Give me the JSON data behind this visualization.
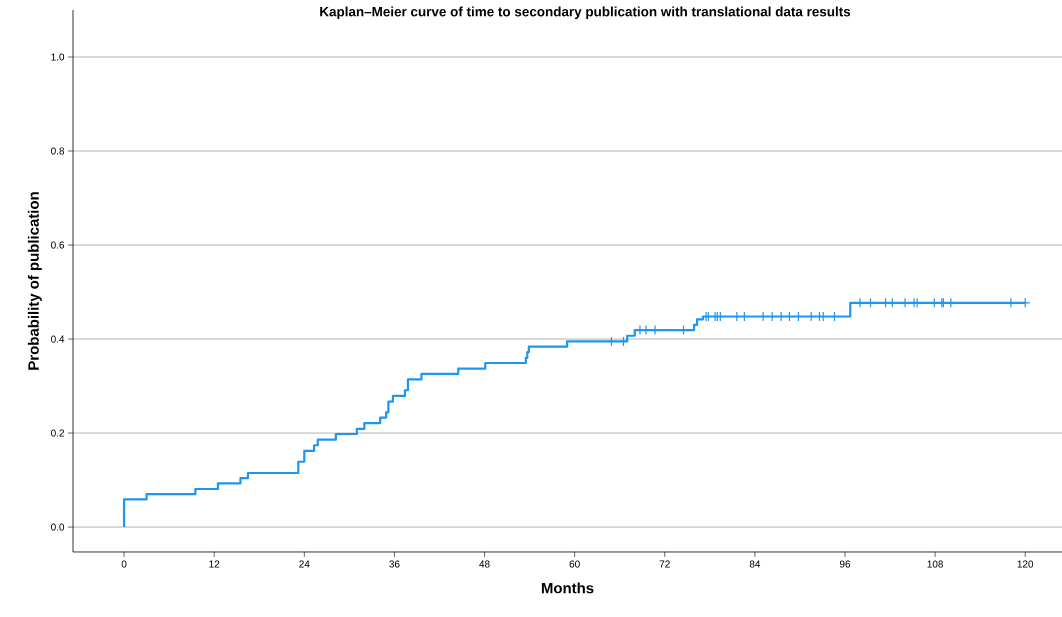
{
  "chart_data": {
    "type": "step",
    "title": "Kaplan–Meier curve of time to secondary publication with translational data results",
    "xlabel": "Months",
    "ylabel": "Probability of publication",
    "series": [
      {
        "type": "step",
        "color": "#1e96f0",
        "x": [
          0,
          0,
          3,
          9.5,
          12.5,
          15.5,
          16.5,
          23.2,
          24,
          25.3,
          25.8,
          28.2,
          31,
          32,
          34.1,
          34.9,
          35.2,
          35.8,
          37.4,
          37.8,
          39.6,
          44.5,
          48.1,
          53.5,
          53.7,
          53.9,
          59,
          67,
          68,
          75.9,
          76.3,
          77.1,
          96.7,
          120
        ],
        "values": [
          0,
          0.059,
          0.07,
          0.081,
          0.093,
          0.104,
          0.115,
          0.139,
          0.162,
          0.174,
          0.186,
          0.198,
          0.209,
          0.221,
          0.233,
          0.244,
          0.267,
          0.279,
          0.291,
          0.314,
          0.326,
          0.337,
          0.349,
          0.36,
          0.372,
          0.384,
          0.395,
          0.407,
          0.419,
          0.43,
          0.442,
          0.448,
          0.477,
          0.477
        ]
      },
      {
        "type": "scatter",
        "marker": "cross",
        "color": "#1e96f0",
        "x": [
          64.9,
          66.5,
          68.7,
          69.5,
          70.7,
          74.5,
          77.5,
          77.8,
          78.7,
          79.0,
          79.4,
          81.6,
          82.6,
          85.1,
          86.3,
          87.5,
          88.6,
          89.8,
          91.5,
          92.6,
          93.1,
          94.6,
          98.0,
          99.4,
          101.4,
          102.3,
          104.0,
          105.2,
          105.6,
          107.9,
          108.9,
          109.1,
          110.1,
          118.1,
          120.0
        ],
        "values": [
          0.395,
          0.395,
          0.419,
          0.419,
          0.419,
          0.419,
          0.448,
          0.448,
          0.448,
          0.448,
          0.448,
          0.448,
          0.448,
          0.448,
          0.448,
          0.448,
          0.448,
          0.448,
          0.448,
          0.448,
          0.448,
          0.448,
          0.477,
          0.477,
          0.477,
          0.477,
          0.477,
          0.477,
          0.477,
          0.477,
          0.477,
          0.477,
          0.477,
          0.477,
          0.477
        ]
      }
    ],
    "xlim": [
      -6.8,
      124.9
    ],
    "ylim": [
      -0.053,
      1.1
    ],
    "xticks": [
      0,
      12,
      24,
      36,
      48,
      60,
      72,
      84,
      96,
      108,
      120
    ],
    "yticks": [
      {
        "value": 0,
        "label": "0.0"
      },
      {
        "value": 0.2,
        "label": "0.2"
      },
      {
        "value": 0.4,
        "label": "0.4"
      },
      {
        "value": 0.6,
        "label": "0.6"
      },
      {
        "value": 0.8,
        "label": "0.8"
      },
      {
        "value": 1.0,
        "label": "1.0"
      }
    ],
    "grid": "y"
  }
}
